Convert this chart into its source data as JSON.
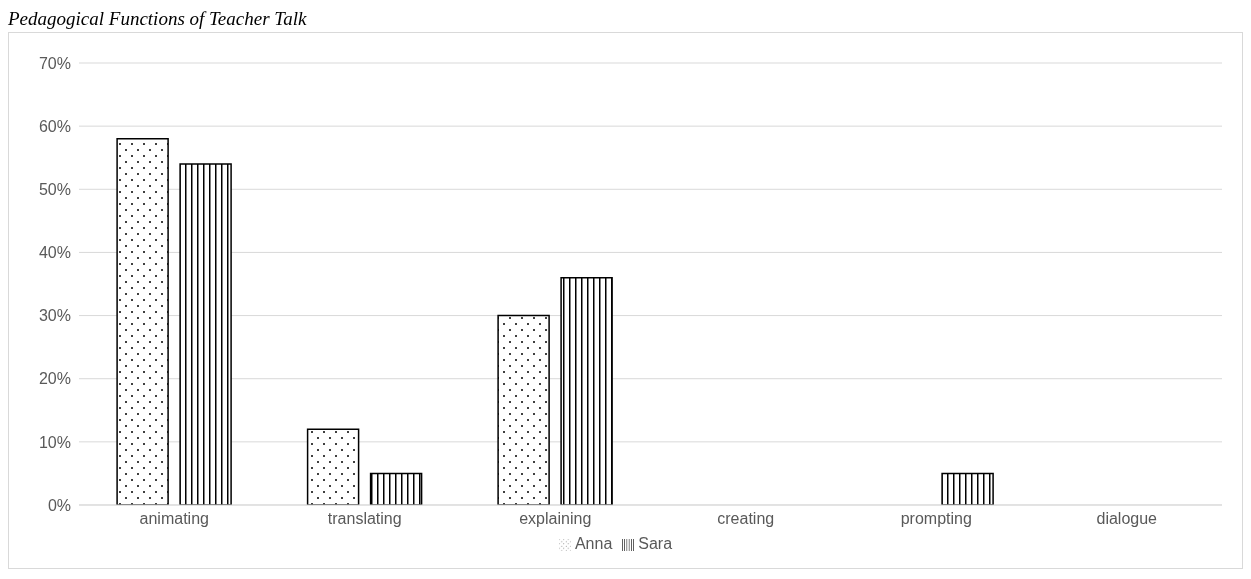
{
  "chart_data": {
    "type": "bar",
    "title": "Pedagogical Functions of Teacher Talk",
    "categories": [
      "animating",
      "translating",
      "explaining",
      "creating",
      "prompting",
      "dialogue"
    ],
    "series": [
      {
        "name": "Anna",
        "color": "#000000",
        "values": [
          58,
          12,
          30,
          0,
          0,
          0
        ]
      },
      {
        "name": "Sara",
        "color": "#000000",
        "values": [
          54,
          5,
          36,
          0,
          5,
          0
        ]
      }
    ],
    "ylim": [
      0,
      70
    ],
    "yticks": [
      {
        "value": 0,
        "label": "0%"
      },
      {
        "value": 10,
        "label": "10%"
      },
      {
        "value": 20,
        "label": "20%"
      },
      {
        "value": 30,
        "label": "30%"
      },
      {
        "value": 40,
        "label": "40%"
      },
      {
        "value": 50,
        "label": "50%"
      },
      {
        "value": 60,
        "label": "60%"
      },
      {
        "value": 70,
        "label": "70%"
      }
    ],
    "grid": "y",
    "legend": "bottom"
  }
}
